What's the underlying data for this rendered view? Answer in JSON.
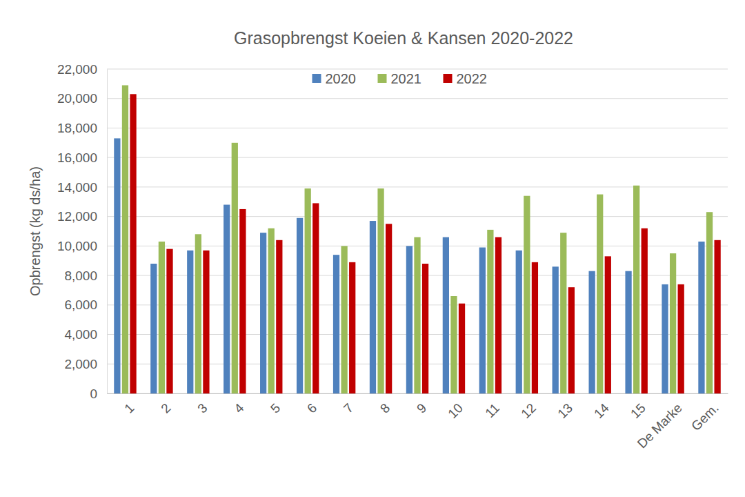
{
  "chart_data": {
    "type": "bar",
    "title": "Grasopbrengst Koeien & Kansen 2020-2022",
    "ylabel": "Opbrengst (kg ds/ha)",
    "categories": [
      "1",
      "2",
      "3",
      "4",
      "5",
      "6",
      "7",
      "8",
      "9",
      "10",
      "11",
      "12",
      "13",
      "14",
      "15",
      "De Marke",
      "Gem."
    ],
    "series": [
      {
        "name": "2020",
        "color": "#4f81bd",
        "values": [
          17300,
          8800,
          9700,
          12800,
          10900,
          11900,
          9400,
          11700,
          10000,
          10600,
          9900,
          9700,
          8600,
          8300,
          8300,
          7400,
          10300
        ]
      },
      {
        "name": "2021",
        "color": "#9bbb59",
        "values": [
          20900,
          10300,
          10800,
          17000,
          11200,
          13900,
          10000,
          13900,
          10600,
          6600,
          11100,
          13400,
          10900,
          13500,
          14100,
          9500,
          12300
        ]
      },
      {
        "name": "2022",
        "color": "#c00000",
        "values": [
          20300,
          9800,
          9700,
          12500,
          10400,
          12900,
          8900,
          11500,
          8800,
          6100,
          10600,
          8900,
          7200,
          9300,
          11200,
          7400,
          10400
        ]
      }
    ],
    "ylim": [
      0,
      22000
    ],
    "yticks": [
      0,
      {
        "value": 2000,
        "label": "2,000"
      },
      {
        "value": 4000,
        "label": "4,000"
      },
      {
        "value": 6000,
        "label": "6,000"
      },
      {
        "value": 8000,
        "label": "8,000"
      },
      {
        "value": 10000,
        "label": "10,000"
      },
      {
        "value": 12000,
        "label": "12,000"
      },
      {
        "value": 14000,
        "label": "14,000"
      },
      {
        "value": 16000,
        "label": "16,000"
      },
      {
        "value": 18000,
        "label": "18,000"
      },
      {
        "value": 20000,
        "label": "20,000"
      },
      {
        "value": 22000,
        "label": "22,000"
      }
    ],
    "grid": true,
    "legend": "top"
  }
}
